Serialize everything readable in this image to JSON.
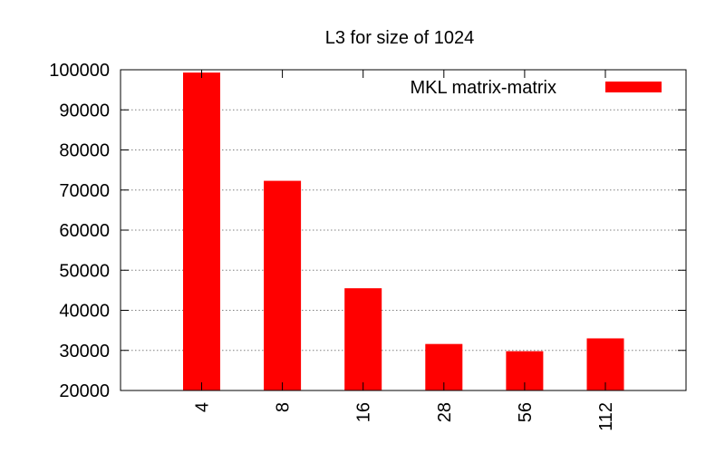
{
  "chart_data": {
    "type": "bar",
    "title": "L3 for size of 1024",
    "xlabel": "",
    "ylabel": "",
    "categories": [
      "4",
      "8",
      "16",
      "28",
      "56",
      "112"
    ],
    "series": [
      {
        "name": "MKL matrix-matrix",
        "color": "#ff0000",
        "values": [
          99300,
          72300,
          45500,
          31600,
          29800,
          33000
        ]
      }
    ],
    "ylim": [
      20000,
      100000
    ],
    "yticks": [
      20000,
      30000,
      40000,
      50000,
      60000,
      70000,
      80000,
      90000,
      100000
    ],
    "grid": "horizontal-dotted",
    "legend_position": "top-right"
  }
}
